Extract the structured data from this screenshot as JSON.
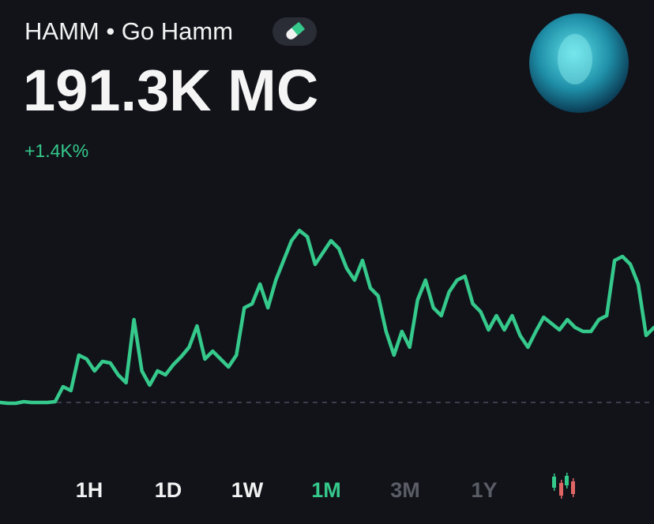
{
  "header": {
    "name": "HAMM • Go Hamm",
    "market_cap": "191.3K MC",
    "change": "+1.4K%"
  },
  "chart_data": {
    "type": "line",
    "color": "#35c98c",
    "values": [
      0,
      -1,
      -1,
      1,
      0,
      0,
      0,
      1,
      20,
      15,
      60,
      55,
      40,
      52,
      50,
      35,
      25,
      105,
      40,
      22,
      40,
      35,
      48,
      58,
      70,
      97,
      55,
      65,
      55,
      45,
      60,
      120,
      125,
      150,
      120,
      155,
      180,
      205,
      218,
      210,
      175,
      190,
      205,
      195,
      170,
      155,
      180,
      145,
      135,
      90,
      60,
      90,
      70,
      130,
      155,
      120,
      110,
      140,
      155,
      160,
      125,
      115,
      92,
      110,
      92,
      110,
      85,
      70,
      90,
      108,
      100,
      92,
      105,
      95,
      90,
      90,
      105,
      110,
      180,
      185,
      175,
      150,
      85,
      95
    ],
    "ylim": [
      -50,
      260
    ]
  },
  "tabs": [
    "1H",
    "1D",
    "1W",
    "1M",
    "3M",
    "1Y"
  ],
  "active_tab": 3,
  "disabled_tabs": [
    4,
    5
  ]
}
